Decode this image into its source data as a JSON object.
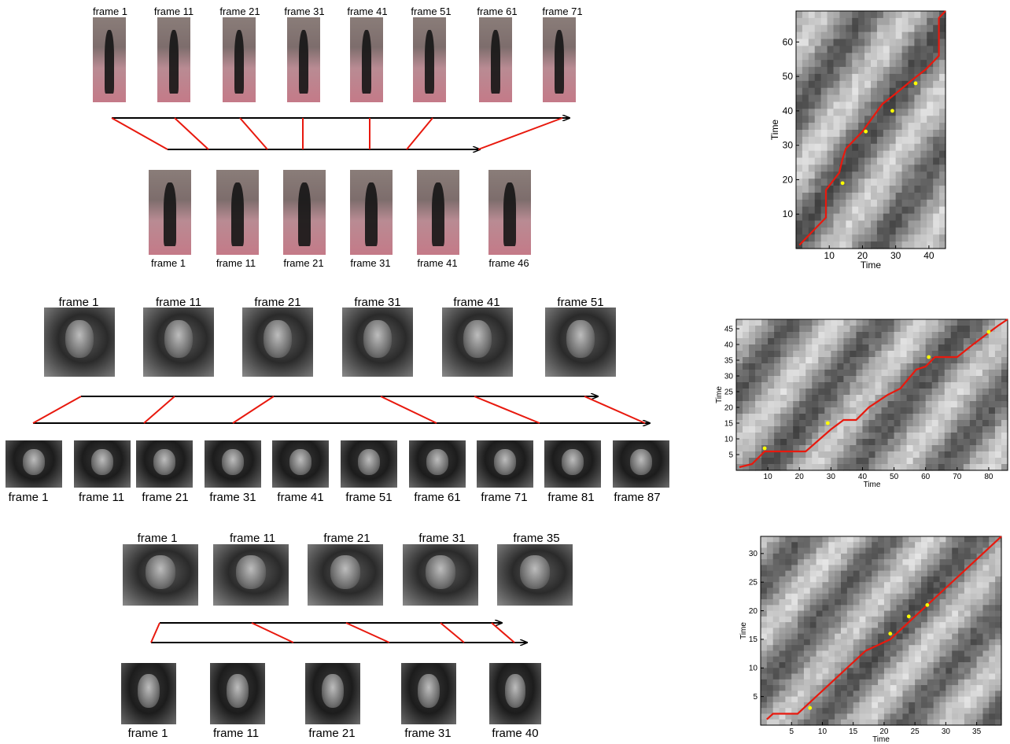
{
  "rows": [
    {
      "top_labels": [
        "frame 1",
        "frame 11",
        "frame 21",
        "frame 31",
        "frame 41",
        "frame 51",
        "frame 61",
        "frame 71"
      ],
      "bottom_labels": [
        "frame 1",
        "frame 11",
        "frame 21",
        "frame 31",
        "frame 41",
        "frame 46"
      ]
    },
    {
      "top_labels": [
        "frame 1",
        "frame 11",
        "frame 21",
        "frame 31",
        "frame 41",
        "frame 51"
      ],
      "bottom_labels": [
        "frame 1",
        "frame 11",
        "frame 21",
        "frame 31",
        "frame 41",
        "frame 51",
        "frame 61",
        "frame 71",
        "frame 81",
        "frame 87"
      ]
    },
    {
      "top_labels": [
        "frame 1",
        "frame 11",
        "frame 21",
        "frame 31",
        "frame 35"
      ],
      "bottom_labels": [
        "frame 1",
        "frame 11",
        "frame 21",
        "frame 31",
        "frame 40"
      ]
    }
  ],
  "chart_data": [
    {
      "type": "heatmap",
      "xlabel": "Time",
      "ylabel": "Time",
      "xlim": [
        0,
        45
      ],
      "ylim": [
        0,
        69
      ],
      "xticks": [
        10,
        20,
        30,
        40
      ],
      "yticks": [
        10,
        20,
        30,
        40,
        50,
        60
      ],
      "path": [
        [
          1,
          1
        ],
        [
          9,
          9
        ],
        [
          9,
          17
        ],
        [
          13,
          22
        ],
        [
          14,
          26
        ],
        [
          15,
          29
        ],
        [
          17,
          31
        ],
        [
          20,
          34
        ],
        [
          23,
          38
        ],
        [
          26,
          42
        ],
        [
          30,
          45
        ],
        [
          35,
          49
        ],
        [
          39,
          52
        ],
        [
          43,
          56
        ],
        [
          43,
          67
        ],
        [
          45,
          69
        ]
      ],
      "points": [
        [
          14,
          19
        ],
        [
          21,
          34
        ],
        [
          29,
          40
        ],
        [
          36,
          48
        ]
      ],
      "path_color": "#e8190e",
      "point_color": "#ffff00"
    },
    {
      "type": "heatmap",
      "xlabel": "Time",
      "ylabel": "Time",
      "xlim": [
        0,
        86
      ],
      "ylim": [
        0,
        48
      ],
      "xticks": [
        10,
        20,
        30,
        40,
        50,
        60,
        70,
        80
      ],
      "yticks": [
        5,
        10,
        15,
        20,
        25,
        30,
        35,
        40,
        45
      ],
      "path": [
        [
          1,
          1
        ],
        [
          5,
          2
        ],
        [
          9,
          6
        ],
        [
          22,
          6
        ],
        [
          30,
          13
        ],
        [
          34,
          16
        ],
        [
          38,
          16
        ],
        [
          42,
          20
        ],
        [
          48,
          24
        ],
        [
          52,
          26
        ],
        [
          57,
          32
        ],
        [
          60,
          33
        ],
        [
          63,
          36
        ],
        [
          70,
          36
        ],
        [
          75,
          40
        ],
        [
          79,
          43
        ],
        [
          83,
          46
        ],
        [
          86,
          48
        ]
      ],
      "points": [
        [
          9,
          7
        ],
        [
          29,
          15
        ],
        [
          61,
          36
        ],
        [
          80,
          44
        ]
      ],
      "path_color": "#e8190e",
      "point_color": "#ffff00"
    },
    {
      "type": "heatmap",
      "xlabel": "Time",
      "ylabel": "Time",
      "xlim": [
        0,
        39
      ],
      "ylim": [
        0,
        33
      ],
      "xticks": [
        5,
        10,
        15,
        20,
        25,
        30,
        35
      ],
      "yticks": [
        5,
        10,
        15,
        20,
        25,
        30
      ],
      "path": [
        [
          1,
          1
        ],
        [
          2,
          2
        ],
        [
          6,
          2
        ],
        [
          8,
          4
        ],
        [
          12,
          8
        ],
        [
          17,
          13
        ],
        [
          19,
          14
        ],
        [
          21,
          15
        ],
        [
          24,
          18
        ],
        [
          27,
          21
        ],
        [
          30,
          24
        ],
        [
          34,
          28
        ],
        [
          38,
          32
        ],
        [
          39,
          33
        ]
      ],
      "points": [
        [
          8,
          3
        ],
        [
          21,
          16
        ],
        [
          24,
          19
        ],
        [
          27,
          21
        ]
      ],
      "path_color": "#e8190e",
      "point_color": "#ffff00"
    }
  ]
}
